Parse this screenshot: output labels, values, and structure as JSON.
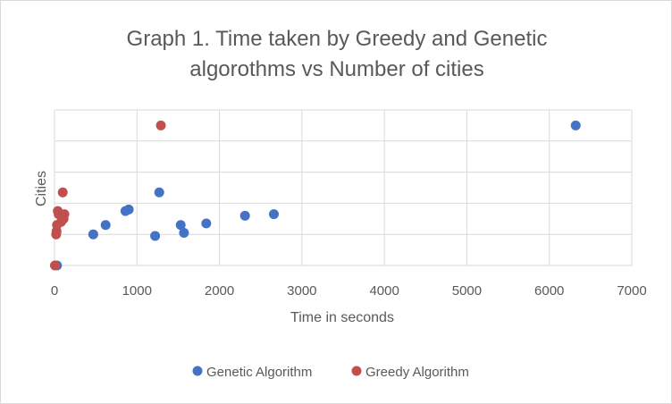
{
  "chart_data": {
    "type": "scatter",
    "title_lines": [
      "Graph 1. Time taken by Greedy and Genetic",
      "algorothms vs Number of cities"
    ],
    "xlabel": "Time in seconds",
    "ylabel": "Cities",
    "xlim": [
      0,
      7000
    ],
    "x_ticks": [
      0,
      1000,
      2000,
      3000,
      4000,
      5000,
      6000,
      7000
    ],
    "y_ticks_count": 6,
    "grid": true,
    "legend_position": "bottom",
    "series": [
      {
        "name": "Genetic Algorithm",
        "color": "#4472c4",
        "points": [
          [
            30,
            0
          ],
          [
            470,
            1.0
          ],
          [
            620,
            1.3
          ],
          [
            860,
            1.75
          ],
          [
            900,
            1.8
          ],
          [
            1220,
            0.95
          ],
          [
            1270,
            2.35
          ],
          [
            1530,
            1.3
          ],
          [
            1570,
            1.05
          ],
          [
            1840,
            1.35
          ],
          [
            2310,
            1.6
          ],
          [
            2660,
            1.65
          ],
          [
            6320,
            4.5
          ]
        ]
      },
      {
        "name": "Greedy Algorithm",
        "color": "#c0504d",
        "points": [
          [
            5,
            0
          ],
          [
            20,
            1.0
          ],
          [
            25,
            1.1
          ],
          [
            30,
            1.3
          ],
          [
            40,
            1.75
          ],
          [
            50,
            1.65
          ],
          [
            80,
            1.4
          ],
          [
            110,
            1.5
          ],
          [
            120,
            1.65
          ],
          [
            100,
            2.35
          ],
          [
            1290,
            4.5
          ]
        ]
      }
    ]
  }
}
